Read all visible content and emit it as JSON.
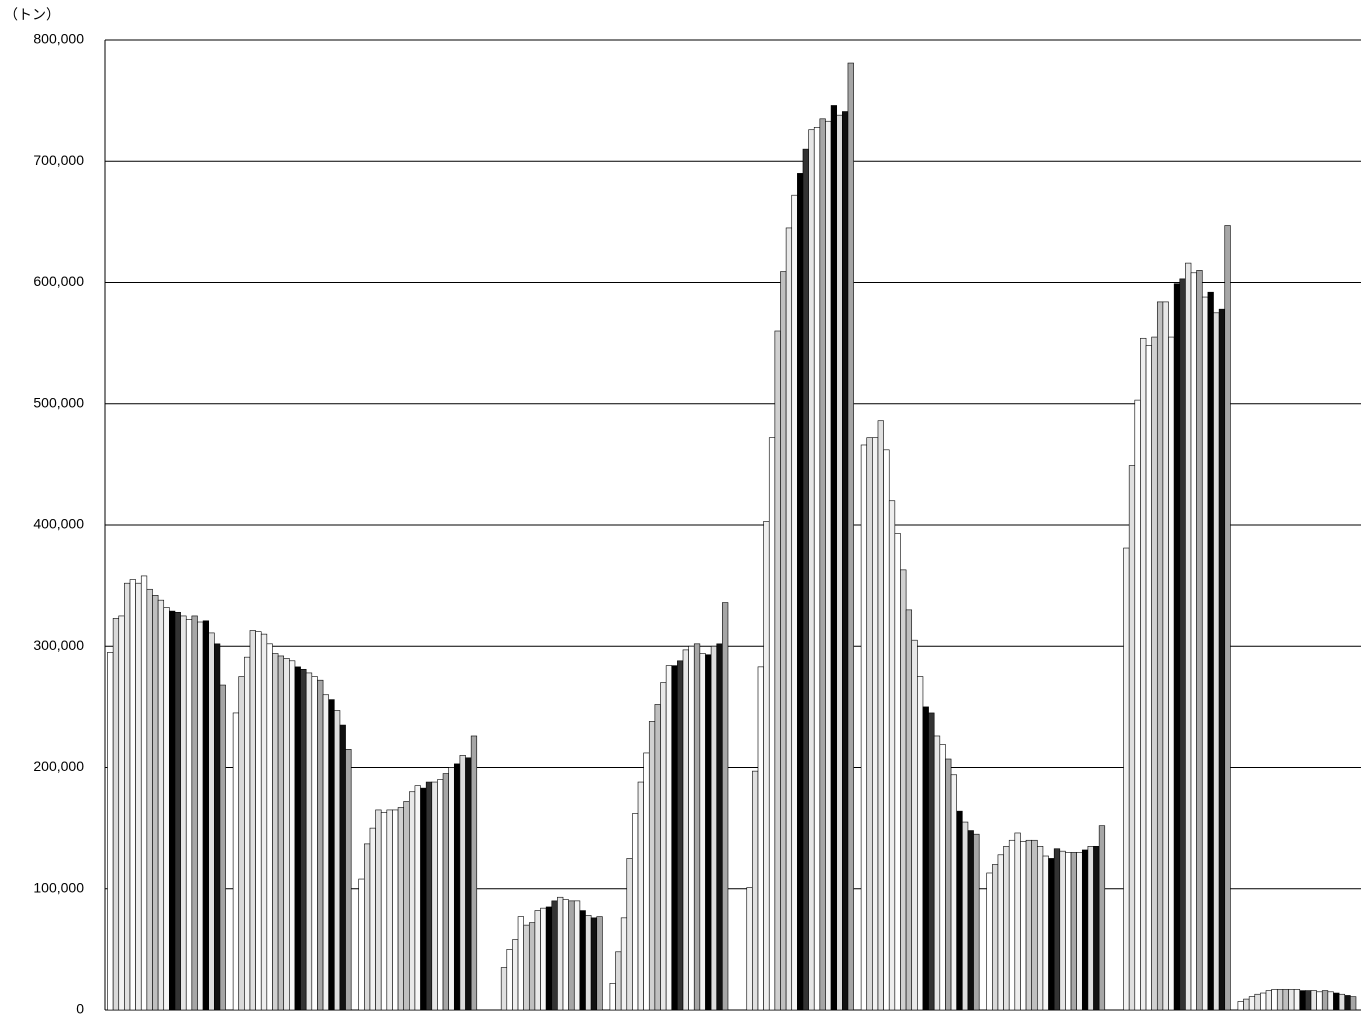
{
  "chart_data": {
    "type": "bar",
    "y_label": "（トン）",
    "categories": [
      null,
      null,
      null,
      null,
      null,
      null,
      null,
      null,
      null,
      null
    ],
    "ylim": [
      0,
      800000
    ],
    "yticks": [
      0,
      {
        "value": 100000,
        "label": "100,000"
      },
      {
        "value": 200000,
        "label": "200,000"
      },
      {
        "value": 300000,
        "label": "300,000"
      },
      {
        "value": 400000,
        "label": "400,000"
      },
      {
        "value": 500000,
        "label": "500,000"
      },
      {
        "value": 600000,
        "label": "600,000"
      },
      {
        "value": 700000,
        "label": "700,000"
      },
      {
        "value": 800000,
        "label": "800,000"
      }
    ],
    "grid": true,
    "series": [
      {
        "color": "#ffffff",
        "values": [
          295000,
          245000,
          108000,
          null,
          22000,
          null,
          466000,
          113000,
          null,
          7000
        ]
      },
      {
        "color": "#d9d9d9",
        "values": [
          323000,
          275000,
          137000,
          null,
          48000,
          null,
          472000,
          120000,
          null,
          9000
        ]
      },
      {
        "color": "#f2f2f2",
        "values": [
          325000,
          291000,
          150000,
          null,
          76000,
          101000,
          472000,
          128000,
          381000,
          11000
        ]
      },
      {
        "color": "#e0e0e0",
        "values": [
          352000,
          313000,
          165000,
          35000,
          125000,
          197000,
          486000,
          135000,
          449000,
          13000
        ]
      },
      {
        "color": "#ffffff",
        "values": [
          355000,
          312000,
          163000,
          50000,
          162000,
          283000,
          462000,
          140000,
          503000,
          14000
        ]
      },
      {
        "color": "#eeeeee",
        "values": [
          352000,
          310000,
          165000,
          58000,
          188000,
          403000,
          420000,
          146000,
          554000,
          16000
        ]
      },
      {
        "color": "#ffffff",
        "values": [
          358000,
          302000,
          165000,
          77000,
          212000,
          472000,
          393000,
          139000,
          548000,
          17000
        ]
      },
      {
        "color": "#d0d0d0",
        "values": [
          347000,
          294000,
          167000,
          70000,
          238000,
          560000,
          363000,
          140000,
          555000,
          17000
        ]
      },
      {
        "color": "#bfbfbf",
        "values": [
          342000,
          292000,
          172000,
          72000,
          252000,
          609000,
          330000,
          140000,
          584000,
          17000
        ]
      },
      {
        "color": "#e8e8e8",
        "values": [
          338000,
          290000,
          180000,
          82000,
          270000,
          645000,
          305000,
          135000,
          584000,
          17000
        ]
      },
      {
        "color": "#f7f7f7",
        "values": [
          332000,
          288000,
          185000,
          84000,
          284000,
          672000,
          275000,
          127000,
          555000,
          17000
        ]
      },
      {
        "color": "#000000",
        "values": [
          329000,
          283000,
          183000,
          85000,
          284000,
          690000,
          250000,
          125000,
          599000,
          16000
        ]
      },
      {
        "color": "#333333",
        "values": [
          328000,
          281000,
          188000,
          90000,
          288000,
          710000,
          245000,
          133000,
          603000,
          16000
        ]
      },
      {
        "color": "#e6e6e6",
        "values": [
          325000,
          278000,
          188000,
          93000,
          297000,
          726000,
          226000,
          131000,
          616000,
          16000
        ]
      },
      {
        "color": "#ffffff",
        "values": [
          322000,
          275000,
          190000,
          91000,
          300000,
          728000,
          219000,
          130000,
          608000,
          15000
        ]
      },
      {
        "color": "#a6a6a6",
        "values": [
          325000,
          272000,
          195000,
          90000,
          302000,
          735000,
          207000,
          130000,
          610000,
          16000
        ]
      },
      {
        "color": "#f2f2f2",
        "values": [
          320000,
          260000,
          200000,
          90000,
          294000,
          733000,
          194000,
          130000,
          588000,
          15000
        ]
      },
      {
        "color": "#000000",
        "values": [
          321000,
          256000,
          203000,
          82000,
          293000,
          746000,
          164000,
          132000,
          592000,
          14000
        ]
      },
      {
        "color": "#dddddd",
        "values": [
          311000,
          247000,
          210000,
          78000,
          300000,
          738000,
          155000,
          135000,
          575000,
          13000
        ]
      },
      {
        "color": "#111111",
        "values": [
          302000,
          235000,
          208000,
          76000,
          302000,
          741000,
          148000,
          135000,
          578000,
          12000
        ]
      },
      {
        "color": "#a6a6a6",
        "values": [
          268000,
          215000,
          226000,
          77000,
          336000,
          781000,
          145000,
          152000,
          647000,
          11000
        ]
      }
    ]
  }
}
